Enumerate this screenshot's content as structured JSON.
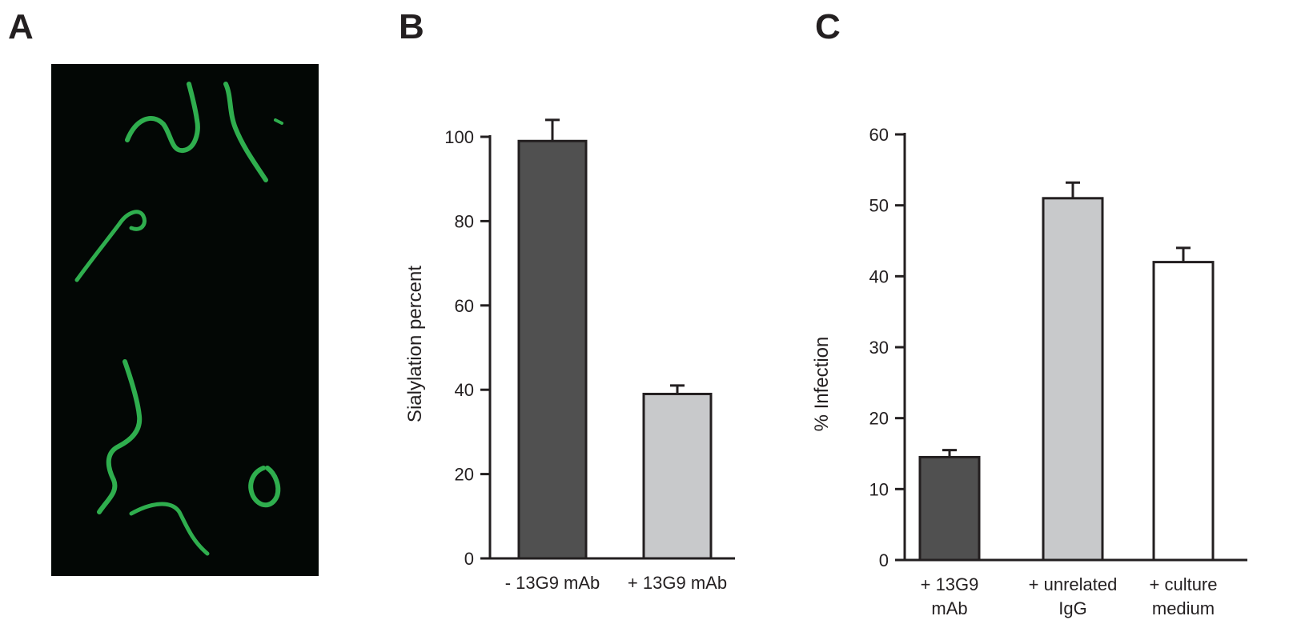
{
  "panels": {
    "a_label": "A",
    "b_label": "B",
    "c_label": "C"
  },
  "colors": {
    "axis": "#231f20",
    "micro_bg": "#030705",
    "stain": "#2fae4e",
    "bar_dark": "#505050",
    "bar_light": "#c8c9cb",
    "bar_white": "#ffffff"
  },
  "chart_data": [
    {
      "type": "bar",
      "title": "",
      "xlabel": "",
      "ylabel": "Sialylation percent",
      "ylim": [
        0,
        100
      ],
      "yticks": [
        0,
        20,
        40,
        60,
        80,
        100
      ],
      "grid": false,
      "categories": [
        "- 13G9 mAb",
        "+ 13G9 mAb"
      ],
      "values": [
        99,
        39
      ],
      "errors": [
        5,
        2
      ],
      "bar_colors": [
        "#505050",
        "#c8c9cb"
      ]
    },
    {
      "type": "bar",
      "title": "",
      "xlabel": "",
      "ylabel": "% Infection",
      "ylim": [
        0,
        60
      ],
      "yticks": [
        0,
        10,
        20,
        30,
        40,
        50,
        60
      ],
      "grid": false,
      "categories": [
        "+ 13G9 mAb",
        "+ unrelated IgG",
        "+ culture medium"
      ],
      "category_lines": [
        [
          "+ 13G9",
          "mAb"
        ],
        [
          "+ unrelated",
          "IgG"
        ],
        [
          "+ culture",
          "medium"
        ]
      ],
      "values": [
        14.5,
        51,
        42
      ],
      "errors": [
        1,
        2.2,
        2
      ],
      "bar_colors": [
        "#505050",
        "#c8c9cb",
        "#ffffff"
      ]
    }
  ]
}
